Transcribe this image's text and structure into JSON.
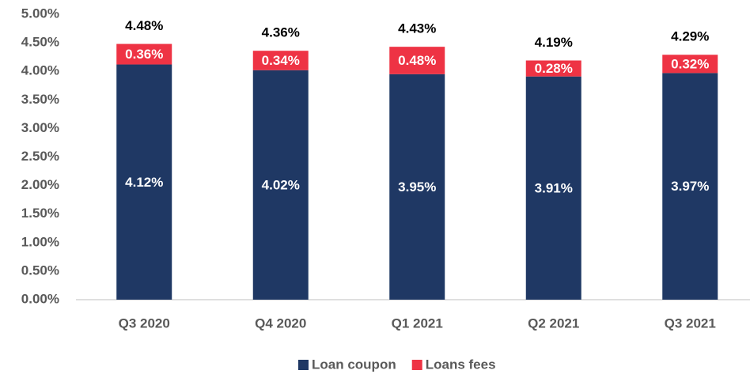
{
  "chart_data": {
    "type": "stacked_bar",
    "categories": [
      "Q3 2020",
      "Q4 2020",
      "Q1 2021",
      "Q2 2021",
      "Q3 2021"
    ],
    "series": [
      {
        "name": "Loan coupon",
        "color": "#1f3864",
        "values": [
          4.12,
          4.02,
          3.95,
          3.91,
          3.97
        ],
        "value_labels": [
          "4.12%",
          "4.02%",
          "3.95%",
          "3.91%",
          "3.97%"
        ]
      },
      {
        "name": "Loans fees",
        "color": "#ee3344",
        "values": [
          0.36,
          0.34,
          0.48,
          0.28,
          0.32
        ],
        "value_labels": [
          "0.36%",
          "0.34%",
          "0.48%",
          "0.28%",
          "0.32%"
        ]
      }
    ],
    "totals": [
      4.48,
      4.36,
      4.43,
      4.19,
      4.29
    ],
    "total_labels": [
      "4.48%",
      "4.36%",
      "4.43%",
      "4.19%",
      "4.29%"
    ],
    "ylim": [
      0,
      5
    ],
    "yticks": [
      {
        "value": 0,
        "label": "0.00%"
      },
      {
        "value": 0.5,
        "label": "0.50%"
      },
      {
        "value": 1,
        "label": "1.00%"
      },
      {
        "value": 1.5,
        "label": "1.50%"
      },
      {
        "value": 2,
        "label": "2.00%"
      },
      {
        "value": 2.5,
        "label": "2.50%"
      },
      {
        "value": 3,
        "label": "3.00%"
      },
      {
        "value": 3.5,
        "label": "3.50%"
      },
      {
        "value": 4,
        "label": "4.00%"
      },
      {
        "value": 4.5,
        "label": "4.50%"
      },
      {
        "value": 5,
        "label": "5.00%"
      }
    ],
    "legend": "bottom"
  }
}
